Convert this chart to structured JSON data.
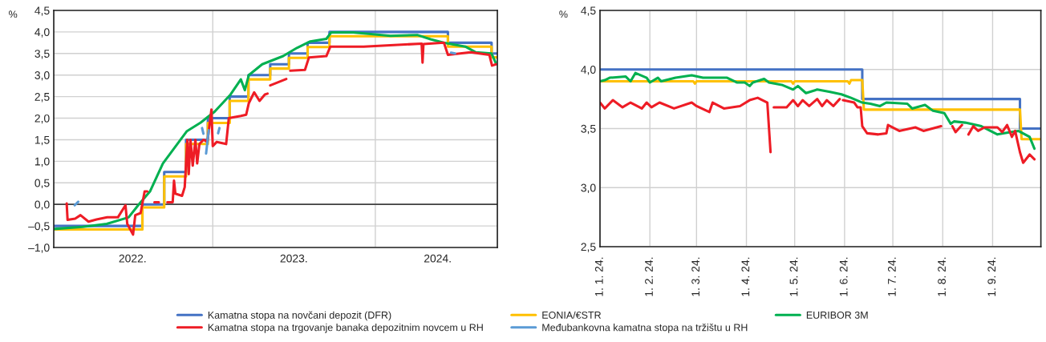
{
  "chart_data": [
    {
      "type": "line",
      "ylabel": "%",
      "legend": "bottom",
      "grid": true,
      "xlim": [
        "2022-01-09",
        "2024-10-01"
      ],
      "xticks": [
        {
          "value": "2023-01-01",
          "label": null
        },
        {
          "value": "2024-01-01",
          "label": null
        },
        {
          "value": "2022-07-05",
          "label": "2022."
        },
        {
          "value": "2023-07-02",
          "label": "2023."
        },
        {
          "value": "2024-05-20",
          "label": "2024."
        }
      ],
      "ylim": [
        -1,
        4.5
      ],
      "yticks": [
        {
          "value": -1,
          "label": "–1,0"
        },
        {
          "value": -0.5,
          "label": "–0,5"
        },
        {
          "value": 0,
          "label": "0,0"
        },
        {
          "value": 0.5,
          "label": "0,5"
        },
        {
          "value": 1,
          "label": "1,0"
        },
        {
          "value": 1.5,
          "label": "1,5"
        },
        {
          "value": 2,
          "label": "2,0"
        },
        {
          "value": 2.5,
          "label": "2,5"
        },
        {
          "value": 3,
          "label": "3,0"
        },
        {
          "value": 3.5,
          "label": "3,5"
        },
        {
          "value": 4,
          "label": "4,0"
        },
        {
          "value": 4.5,
          "label": "4,5"
        }
      ],
      "ref_lines": [
        {
          "axis": "y",
          "value": 0,
          "color": "#404040"
        }
      ],
      "series": [
        {
          "name": "Kamatna stopa na novčani depozit (DFR)",
          "type": "step",
          "color": "#4472c4",
          "x": [
            "2022-01-09",
            "2022-07-27",
            "2022-09-14",
            "2022-11-02",
            "2022-12-21",
            "2023-02-08",
            "2023-03-22",
            "2023-05-10",
            "2023-06-21",
            "2023-08-02",
            "2023-09-20",
            "2024-06-12",
            "2024-09-18",
            "2024-10-01"
          ],
          "values": [
            -0.5,
            0,
            0.75,
            1.5,
            2,
            2.5,
            3,
            3.25,
            3.5,
            3.75,
            4,
            3.75,
            3.5,
            3.5
          ]
        },
        {
          "name": "EONIA/€STR",
          "type": "step",
          "color": "#ffc000",
          "x": [
            "2022-01-09",
            "2022-07-27",
            "2022-09-14",
            "2022-11-02",
            "2022-12-21",
            "2023-02-08",
            "2023-03-22",
            "2023-05-10",
            "2023-06-21",
            "2023-08-02",
            "2023-09-20",
            "2024-06-12",
            "2024-09-18",
            "2024-10-01"
          ],
          "values": [
            -0.58,
            -0.07,
            0.65,
            1.4,
            1.89,
            2.4,
            2.9,
            3.15,
            3.4,
            3.65,
            3.9,
            3.66,
            3.41,
            3.41
          ]
        },
        {
          "name": "EURIBOR 3M",
          "color": "#00b050",
          "x": [
            "2022-01-09",
            "2022-03-15",
            "2022-05-08",
            "2022-06-26",
            "2022-07-19",
            "2022-08-13",
            "2022-09-11",
            "2022-09-29",
            "2022-11-04",
            "2022-12-05",
            "2023-01-05",
            "2023-02-10",
            "2023-03-05",
            "2023-03-14",
            "2023-03-23",
            "2023-04-22",
            "2023-06-08",
            "2023-07-09",
            "2023-08-08",
            "2023-09-13",
            "2023-09-24",
            "2023-11-12",
            "2024-02-04",
            "2024-04-04",
            "2024-05-04",
            "2024-06-02",
            "2024-07-21",
            "2024-08-13",
            "2024-09-18",
            "2024-09-27"
          ],
          "values": [
            -0.57,
            -0.52,
            -0.45,
            -0.3,
            0.0,
            0.3,
            0.95,
            1.2,
            1.7,
            1.9,
            2.15,
            2.55,
            2.9,
            2.65,
            3.0,
            3.25,
            3.44,
            3.63,
            3.78,
            3.84,
            3.99,
            3.99,
            3.91,
            3.93,
            3.83,
            3.75,
            3.66,
            3.53,
            3.5,
            3.29
          ]
        },
        {
          "name": "Kamatna stopa na trgovanje banaka depozitnim novcem u RH",
          "color": "#ee1c25",
          "x": [
            "2022-02-07",
            "2022-02-09",
            "2022-02-26",
            "2022-03-10",
            "2022-03-28",
            "2022-04-15",
            "2022-05-09",
            "2022-06-02",
            "2022-06-19",
            "2022-06-23",
            "2022-07-06",
            "2022-07-11",
            "2022-07-23",
            "2022-08-01",
            "2022-08-07",
            "2022-08-18",
            "2022-08-23",
            "2022-09-02",
            "2022-09-12",
            "2022-09-21",
            "2022-10-03",
            "2022-10-06",
            "2022-10-09",
            "2022-10-24",
            "2022-10-30",
            "2022-11-05",
            "2022-11-08",
            "2022-11-12",
            "2022-11-17",
            "2022-11-23",
            "2022-11-27",
            "2022-12-02",
            "2022-12-11",
            "2022-12-20",
            "2022-12-29",
            "2023-01-01",
            "2023-01-10",
            "2023-01-31",
            "2023-02-06",
            "2023-03-05",
            "2023-03-17",
            "2023-03-23",
            "2023-04-04",
            "2023-04-16",
            "2023-04-28",
            "2023-05-04",
            "2023-05-07",
            "2023-05-10",
            "2023-06-15",
            "2023-06-20",
            "2023-06-24",
            "2023-07-27",
            "2023-08-05",
            "2023-09-13",
            "2023-09-22",
            "2023-12-06",
            "2024-04-14",
            "2024-04-16",
            "2024-04-18",
            "2024-06-03",
            "2024-06-12",
            "2024-08-02",
            "2024-09-13",
            "2024-09-19",
            "2024-09-28"
          ],
          "values": [
            0.02,
            -0.36,
            -0.33,
            -0.25,
            -0.4,
            -0.35,
            -0.3,
            -0.3,
            -0.02,
            -0.45,
            -0.7,
            -0.25,
            -0.2,
            0.3,
            0.3,
            null,
            0.05,
            0.05,
            null,
            0.05,
            0.05,
            0.55,
            0.25,
            0.2,
            0.4,
            1.5,
            0.7,
            1.5,
            0.9,
            1.5,
            0.95,
            1.4,
            1.5,
            1.45,
            2.2,
            1.35,
            1.45,
            1.4,
            2.0,
            2.05,
            2.08,
            2.35,
            2.6,
            2.4,
            2.55,
            2.57,
            null,
            2.76,
            2.91,
            null,
            3.1,
            3.12,
            3.41,
            3.44,
            3.66,
            3.66,
            3.73,
            3.29,
            3.72,
            3.75,
            3.47,
            3.53,
            3.47,
            3.22,
            3.25
          ]
        },
        {
          "name": "Međubankovna kamatna stopa na tržištu u RH",
          "color": "#5b9bd5",
          "x": [
            "2022-02-25",
            "2022-03-05",
            "2022-03-10",
            "2022-12-08",
            "2022-12-11",
            "2022-12-14",
            "2022-12-17",
            "2022-12-23",
            "2023-01-05",
            "2023-01-13",
            "2023-01-16",
            "2024-05-01",
            "2024-06-19",
            "2024-06-28"
          ],
          "values": [
            -0.02,
            0.06,
            null,
            1.77,
            1.64,
            null,
            1.18,
            1.72,
            null,
            1.65,
            1.77,
            null,
            3.52,
            3.5
          ]
        }
      ]
    },
    {
      "type": "line",
      "ylabel": "%",
      "grid": true,
      "xlim": [
        "2024-01-01",
        "2024-10-01"
      ],
      "xticks": [
        {
          "value": "2024-01-01",
          "label": "1. 1. 24."
        },
        {
          "value": "2024-02-01",
          "label": "1. 2. 24."
        },
        {
          "value": "2024-03-01",
          "label": "1. 3. 24."
        },
        {
          "value": "2024-04-01",
          "label": "1. 4. 24."
        },
        {
          "value": "2024-05-01",
          "label": "1. 5. 24."
        },
        {
          "value": "2024-06-01",
          "label": "1. 6. 24."
        },
        {
          "value": "2024-07-01",
          "label": "1. 7. 24."
        },
        {
          "value": "2024-08-01",
          "label": "1. 8. 24."
        },
        {
          "value": "2024-09-01",
          "label": "1. 9. 24."
        }
      ],
      "ylim": [
        2.5,
        4.5
      ],
      "yticks": [
        {
          "value": 2.5,
          "label": "2,5"
        },
        {
          "value": 3,
          "label": "3,0"
        },
        {
          "value": 3.5,
          "label": "3,5"
        },
        {
          "value": 4,
          "label": "4,0"
        },
        {
          "value": 4.5,
          "label": "4,5"
        }
      ],
      "series": [
        {
          "type": "step",
          "color": "#4472c4",
          "x": [
            "2024-01-01",
            "2024-06-12",
            "2024-09-18",
            "2024-10-01"
          ],
          "values": [
            4,
            3.75,
            3.5,
            3.5
          ]
        },
        {
          "color": "#ffc000",
          "x": [
            "2024-01-01",
            "2024-02-28",
            "2024-02-29",
            "2024-03-01",
            "2024-04-29",
            "2024-04-30",
            "2024-05-01",
            "2024-06-03",
            "2024-06-04",
            "2024-06-05",
            "2024-06-12",
            "2024-06-13",
            "2024-09-18",
            "2024-09-19",
            "2024-10-01"
          ],
          "values": [
            3.9,
            3.9,
            3.88,
            3.9,
            3.9,
            3.88,
            3.9,
            3.9,
            3.88,
            3.91,
            3.91,
            3.66,
            3.66,
            3.41,
            3.41
          ]
        },
        {
          "color": "#00b050",
          "x": [
            "2024-01-01",
            "2024-01-04",
            "2024-01-07",
            "2024-01-17",
            "2024-01-20",
            "2024-01-23",
            "2024-01-30",
            "2024-02-01",
            "2024-02-06",
            "2024-02-08",
            "2024-02-17",
            "2024-02-27",
            "2024-03-05",
            "2024-03-20",
            "2024-03-26",
            "2024-03-31",
            "2024-04-03",
            "2024-04-05",
            "2024-04-12",
            "2024-04-15",
            "2024-04-23",
            "2024-04-30",
            "2024-05-03",
            "2024-05-08",
            "2024-05-15",
            "2024-05-23",
            "2024-05-30",
            "2024-06-05",
            "2024-06-12",
            "2024-06-17",
            "2024-06-23",
            "2024-06-27",
            "2024-07-10",
            "2024-07-13",
            "2024-07-21",
            "2024-07-26",
            "2024-08-02",
            "2024-08-06",
            "2024-08-08",
            "2024-08-15",
            "2024-08-25",
            "2024-09-04",
            "2024-09-12",
            "2024-09-17",
            "2024-09-24",
            "2024-09-27"
          ],
          "values": [
            3.9,
            3.91,
            3.93,
            3.94,
            3.9,
            3.97,
            3.93,
            3.89,
            3.93,
            3.9,
            3.93,
            3.95,
            3.93,
            3.93,
            3.89,
            3.89,
            3.86,
            3.89,
            3.92,
            3.89,
            3.87,
            3.83,
            3.86,
            3.8,
            3.83,
            3.81,
            3.79,
            3.76,
            3.72,
            3.71,
            3.69,
            3.72,
            3.71,
            3.67,
            3.7,
            3.65,
            3.63,
            3.54,
            3.56,
            3.55,
            3.52,
            3.45,
            3.47,
            3.48,
            3.43,
            3.33
          ]
        },
        {
          "color": "#ee1c25",
          "x": [
            "2024-01-01",
            "2024-01-04",
            "2024-01-09",
            "2024-01-15",
            "2024-01-20",
            "2024-01-27",
            "2024-01-30",
            "2024-02-02",
            "2024-02-07",
            "2024-02-16",
            "2024-02-27",
            "2024-03-01",
            "2024-03-09",
            "2024-03-11",
            "2024-03-18",
            "2024-03-28",
            "2024-04-03",
            "2024-04-08",
            "2024-04-14",
            "2024-04-16",
            "2024-04-17",
            "2024-04-18",
            "2024-04-26",
            "2024-04-30",
            "2024-05-03",
            "2024-05-06",
            "2024-05-10",
            "2024-05-15",
            "2024-05-18",
            "2024-05-21",
            "2024-05-25",
            "2024-05-29",
            "2024-05-30",
            "2024-05-31",
            "2024-06-07",
            "2024-06-09",
            "2024-06-11",
            "2024-06-12",
            "2024-06-15",
            "2024-06-22",
            "2024-06-27",
            "2024-06-28",
            "2024-07-05",
            "2024-07-15",
            "2024-07-20",
            "2024-07-31",
            "2024-08-04",
            "2024-08-07",
            "2024-08-09",
            "2024-08-13",
            "2024-08-15",
            "2024-08-17",
            "2024-08-20",
            "2024-08-23",
            "2024-08-27",
            "2024-09-04",
            "2024-09-07",
            "2024-09-10",
            "2024-09-13",
            "2024-09-15",
            "2024-09-18",
            "2024-09-20",
            "2024-09-24",
            "2024-09-27"
          ],
          "values": [
            3.72,
            3.67,
            3.74,
            3.68,
            3.72,
            3.67,
            3.72,
            3.68,
            3.72,
            3.67,
            3.72,
            3.69,
            3.64,
            3.72,
            3.67,
            3.69,
            3.74,
            3.76,
            3.72,
            3.3,
            null,
            3.68,
            3.68,
            3.74,
            3.69,
            3.74,
            3.69,
            3.75,
            3.69,
            3.74,
            3.69,
            3.75,
            null,
            3.74,
            3.72,
            3.68,
            3.68,
            3.52,
            3.46,
            3.45,
            3.46,
            3.53,
            3.48,
            3.51,
            3.48,
            3.52,
            null,
            3.52,
            3.47,
            3.53,
            null,
            3.45,
            3.52,
            3.48,
            3.51,
            3.51,
            3.47,
            3.53,
            3.43,
            3.48,
            3.3,
            3.21,
            3.28,
            3.24
          ]
        }
      ]
    }
  ]
}
